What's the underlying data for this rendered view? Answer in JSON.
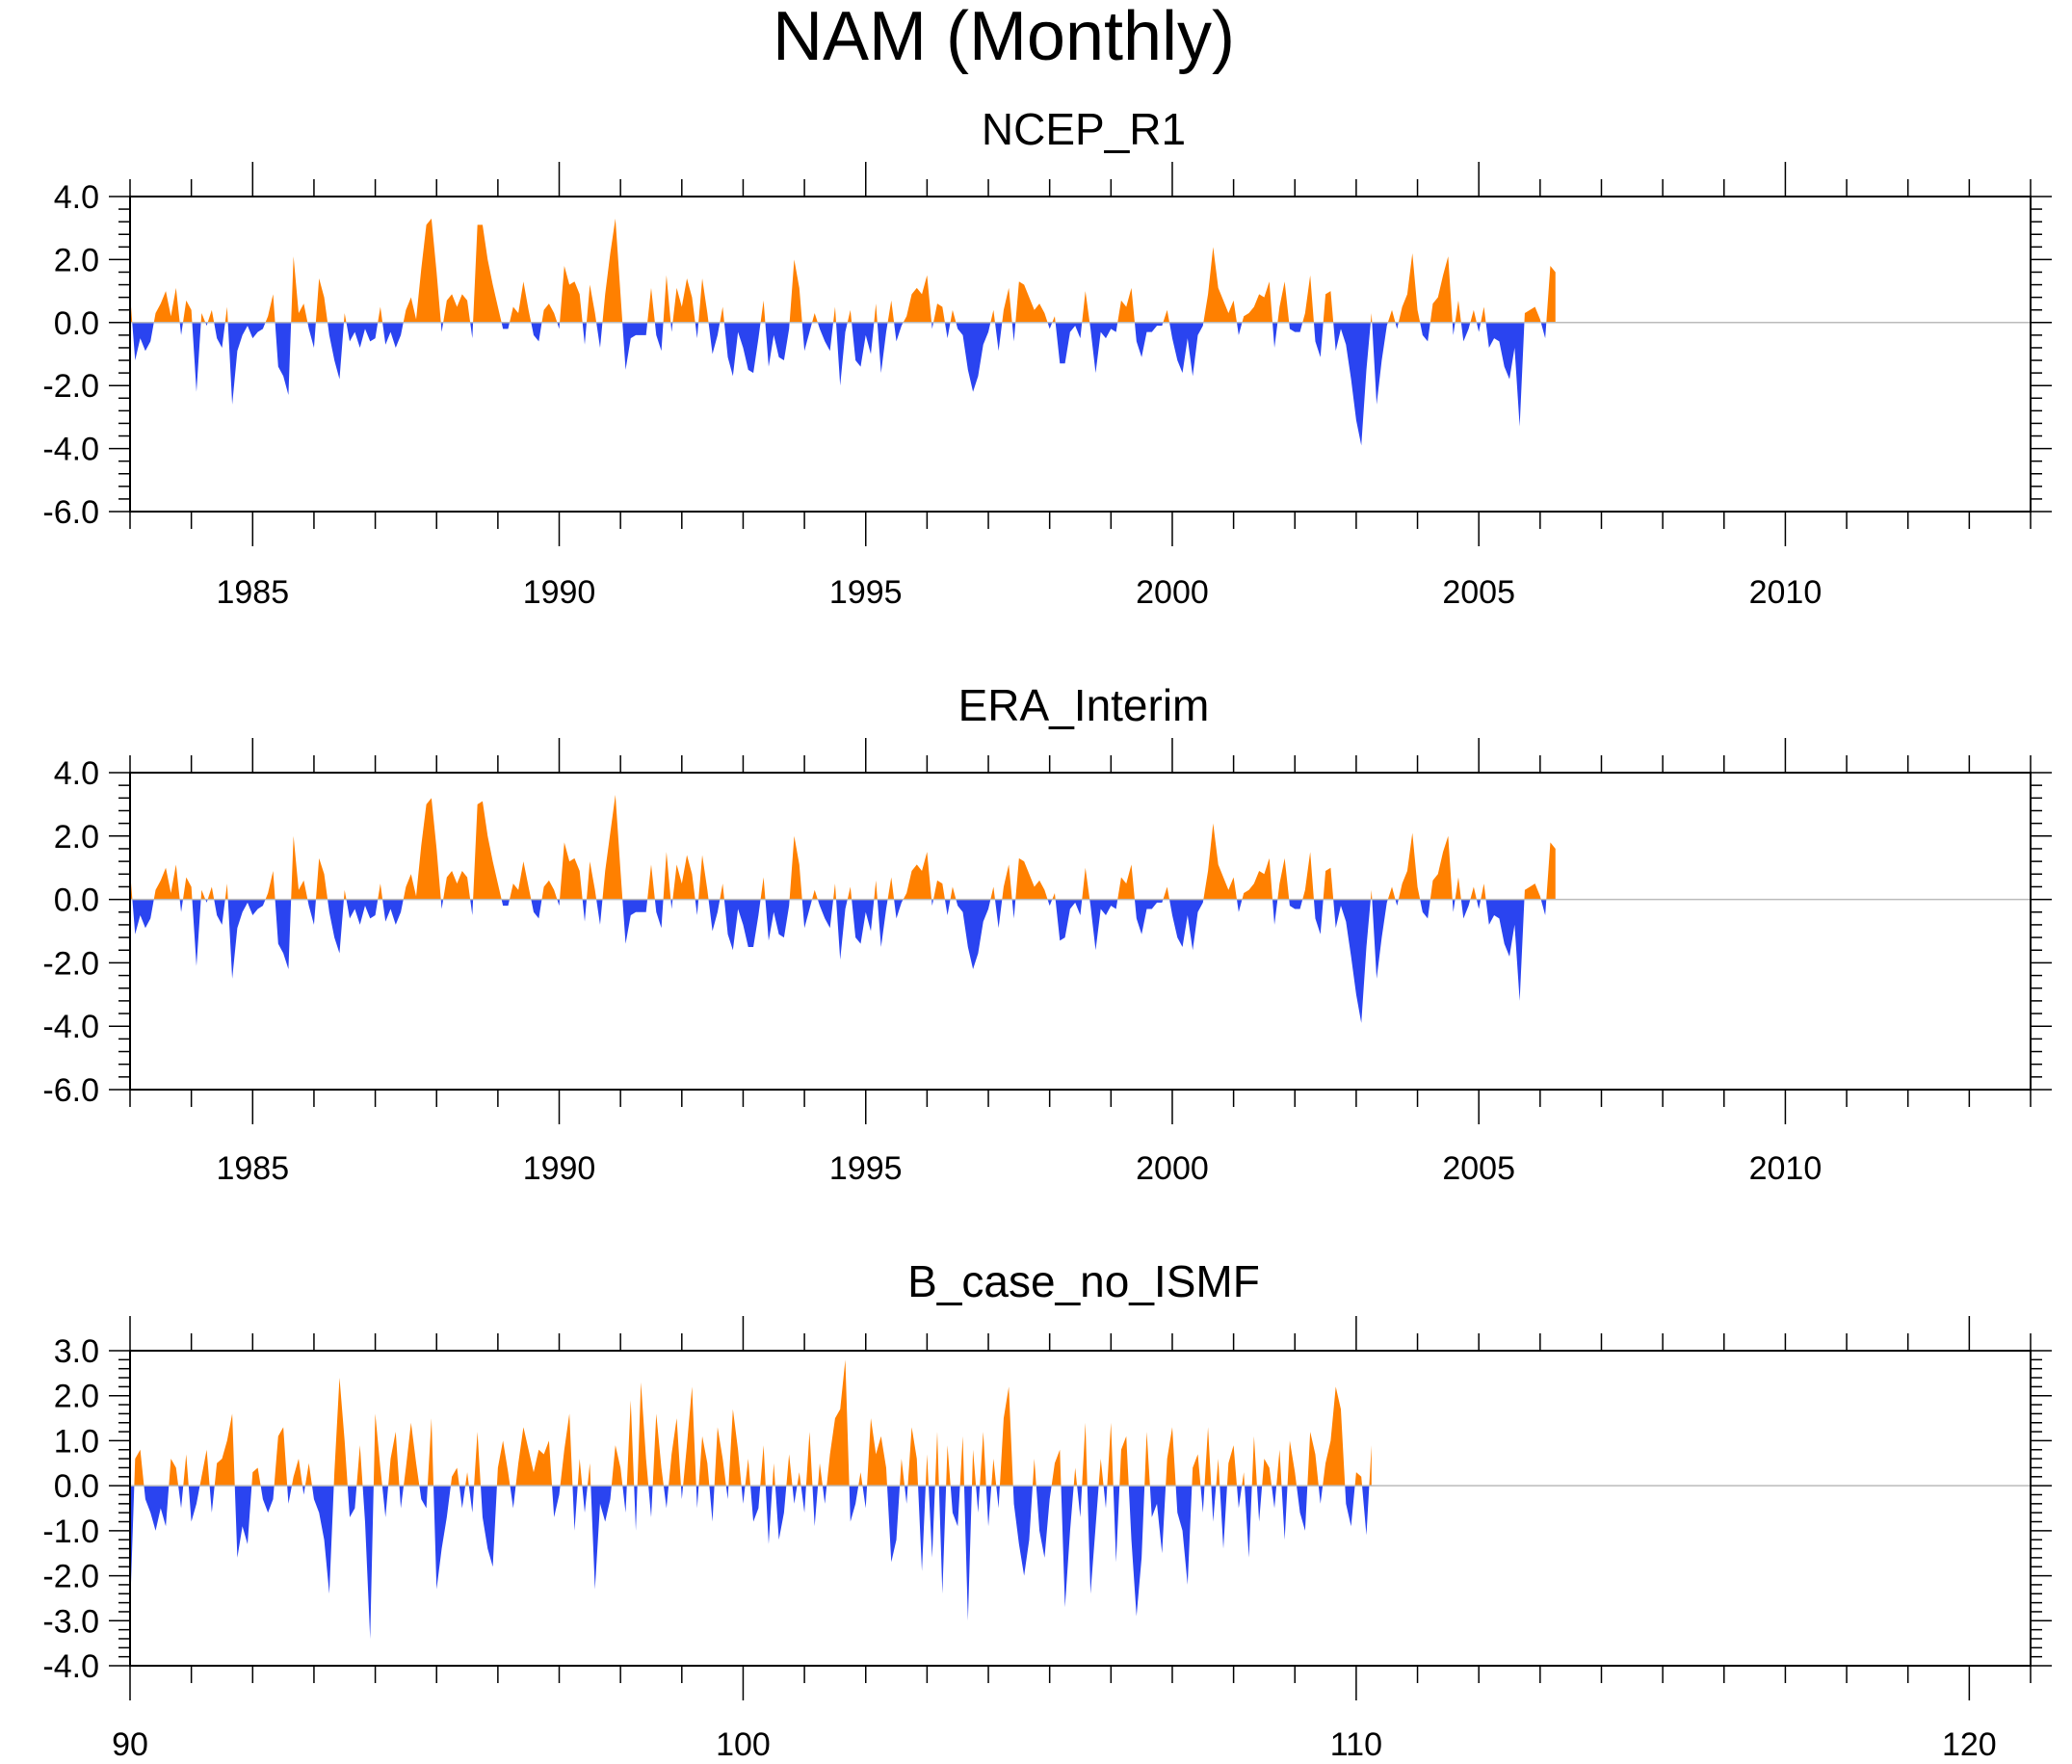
{
  "title": "NAM (Monthly)",
  "colors": {
    "positive": "#ff8000",
    "negative": "#2a44f0",
    "axis": "#000000",
    "zero_line": "#bbbbbb"
  },
  "chart_data": [
    {
      "type": "area",
      "title": "NCEP_R1",
      "xlabel": "",
      "ylabel": "",
      "x_range": [
        1983,
        2014
      ],
      "x_start": 1983.0,
      "x_step": 0.0833333,
      "xticks": [
        1985,
        1990,
        1995,
        2000,
        2005,
        2010
      ],
      "xtick_labels": [
        "1985",
        "1990",
        "1995",
        "2000",
        "2005",
        "2010"
      ],
      "ylim": [
        -6.0,
        4.0
      ],
      "yticks": [
        4.0,
        2.0,
        0.0,
        -2.0,
        -4.0,
        -6.0
      ],
      "ytick_labels": [
        "4.0",
        "2.0",
        "0.0",
        "-2.0",
        "-4.0",
        "-6.0"
      ],
      "values": [
        0.9,
        -1.2,
        -0.5,
        -0.9,
        -0.6,
        0.3,
        0.6,
        1.0,
        0.2,
        1.1,
        -0.4,
        0.7,
        0.4,
        -2.2,
        0.3,
        -0.1,
        0.4,
        -0.5,
        -0.8,
        0.5,
        -2.6,
        -0.9,
        -0.4,
        -0.1,
        -0.5,
        -0.3,
        -0.2,
        0.2,
        0.9,
        -1.4,
        -1.7,
        -2.3,
        2.1,
        0.3,
        0.6,
        -0.2,
        -0.8,
        1.4,
        0.8,
        -0.4,
        -1.2,
        -1.8,
        0.3,
        -0.6,
        -0.3,
        -0.8,
        -0.2,
        -0.6,
        -0.5,
        0.5,
        -0.7,
        -0.3,
        -0.8,
        -0.4,
        0.4,
        0.8,
        0.1,
        1.7,
        3.1,
        3.3,
        1.6,
        -0.3,
        0.7,
        0.9,
        0.5,
        0.9,
        0.7,
        -0.5,
        3.1,
        3.1,
        2.0,
        1.2,
        0.5,
        -0.2,
        -0.2,
        0.5,
        0.3,
        1.3,
        0.4,
        -0.4,
        -0.6,
        0.4,
        0.6,
        0.3,
        -0.2,
        1.8,
        1.2,
        1.3,
        0.9,
        -0.7,
        1.2,
        0.3,
        -0.8,
        0.9,
        2.2,
        3.3,
        0.9,
        -1.5,
        -0.5,
        -0.4,
        -0.4,
        -0.4,
        1.1,
        -0.4,
        -0.9,
        1.5,
        -0.3,
        1.1,
        0.5,
        1.4,
        0.8,
        -0.5,
        1.4,
        0.3,
        -1.0,
        -0.4,
        0.5,
        -1.1,
        -1.7,
        -0.3,
        -0.8,
        -1.5,
        -1.6,
        -0.5,
        0.7,
        -1.4,
        -0.4,
        -1.1,
        -1.2,
        -0.2,
        2.0,
        1.1,
        -0.9,
        -0.3,
        0.3,
        -0.2,
        -0.6,
        -0.9,
        0.5,
        -2.0,
        -0.3,
        0.4,
        -1.2,
        -1.4,
        -0.4,
        -1.0,
        0.6,
        -1.6,
        -0.3,
        0.7,
        -0.6,
        -0.1,
        0.2,
        0.9,
        1.1,
        0.9,
        1.5,
        -0.2,
        0.6,
        0.5,
        -0.5,
        0.4,
        -0.2,
        -0.4,
        -1.5,
        -2.2,
        -1.7,
        -0.7,
        -0.3,
        0.4,
        -0.9,
        0.4,
        1.1,
        -0.6,
        1.3,
        1.2,
        0.8,
        0.4,
        0.6,
        0.3,
        -0.2,
        0.2,
        -1.3,
        -1.3,
        -0.3,
        -0.1,
        -0.5,
        1.0,
        -0.2,
        -1.6,
        -0.3,
        -0.5,
        -0.2,
        -0.3,
        0.7,
        0.5,
        1.1,
        -0.6,
        -1.1,
        -0.3,
        -0.3,
        -0.1,
        -0.1,
        0.4,
        -0.5,
        -1.2,
        -1.6,
        -0.5,
        -1.7,
        -0.4,
        -0.1,
        0.9,
        2.4,
        1.1,
        0.7,
        0.3,
        0.7,
        -0.4,
        0.2,
        0.3,
        0.5,
        0.9,
        0.8,
        1.3,
        -0.8,
        0.5,
        1.3,
        -0.2,
        -0.3,
        -0.3,
        0.3,
        1.5,
        -0.6,
        -1.1,
        0.9,
        1.0,
        -0.9,
        -0.2,
        -0.7,
        -1.8,
        -3.1,
        -3.9,
        -1.5,
        0.3,
        -2.6,
        -1.2,
        -0.1,
        0.4,
        -0.2,
        0.5,
        0.9,
        2.2,
        0.4,
        -0.4,
        -0.6,
        0.6,
        0.8,
        1.5,
        2.1,
        -0.4,
        0.7,
        -0.6,
        -0.2,
        0.4,
        -0.3,
        0.5,
        -0.8,
        -0.5,
        -0.6,
        -1.4,
        -1.8,
        -0.8,
        -3.3,
        0.3,
        0.4,
        0.5,
        0.1,
        -0.5,
        1.8,
        1.6
      ]
    },
    {
      "type": "area",
      "title": "ERA_Interim",
      "xlabel": "",
      "ylabel": "",
      "x_range": [
        1983,
        2014
      ],
      "x_start": 1983.0,
      "x_step": 0.0833333,
      "xticks": [
        1985,
        1990,
        1995,
        2000,
        2005,
        2010
      ],
      "xtick_labels": [
        "1985",
        "1990",
        "1995",
        "2000",
        "2005",
        "2010"
      ],
      "ylim": [
        -6.0,
        4.0
      ],
      "yticks": [
        4.0,
        2.0,
        0.0,
        -2.0,
        -4.0,
        -6.0
      ],
      "ytick_labels": [
        "4.0",
        "2.0",
        "0.0",
        "-2.0",
        "-4.0",
        "-6.0"
      ],
      "values": [
        0.9,
        -1.1,
        -0.5,
        -0.9,
        -0.6,
        0.3,
        0.6,
        1.0,
        0.2,
        1.1,
        -0.4,
        0.7,
        0.4,
        -2.1,
        0.3,
        -0.1,
        0.4,
        -0.5,
        -0.8,
        0.5,
        -2.5,
        -0.9,
        -0.4,
        -0.1,
        -0.5,
        -0.3,
        -0.2,
        0.2,
        0.9,
        -1.4,
        -1.7,
        -2.2,
        2.0,
        0.3,
        0.6,
        -0.2,
        -0.8,
        1.3,
        0.8,
        -0.4,
        -1.2,
        -1.7,
        0.3,
        -0.6,
        -0.3,
        -0.8,
        -0.2,
        -0.6,
        -0.5,
        0.5,
        -0.7,
        -0.3,
        -0.8,
        -0.4,
        0.4,
        0.8,
        0.1,
        1.7,
        3.0,
        3.2,
        1.6,
        -0.3,
        0.7,
        0.9,
        0.5,
        0.9,
        0.7,
        -0.5,
        3.0,
        3.1,
        2.0,
        1.2,
        0.5,
        -0.2,
        -0.2,
        0.5,
        0.3,
        1.2,
        0.4,
        -0.4,
        -0.6,
        0.4,
        0.6,
        0.3,
        -0.2,
        1.8,
        1.2,
        1.3,
        0.9,
        -0.7,
        1.2,
        0.3,
        -0.8,
        0.9,
        2.1,
        3.3,
        0.9,
        -1.4,
        -0.5,
        -0.4,
        -0.4,
        -0.4,
        1.1,
        -0.4,
        -0.9,
        1.5,
        -0.3,
        1.1,
        0.5,
        1.4,
        0.8,
        -0.5,
        1.4,
        0.3,
        -1.0,
        -0.4,
        0.5,
        -1.1,
        -1.6,
        -0.3,
        -0.8,
        -1.5,
        -1.5,
        -0.5,
        0.7,
        -1.3,
        -0.4,
        -1.1,
        -1.2,
        -0.2,
        2.0,
        1.1,
        -0.9,
        -0.3,
        0.3,
        -0.2,
        -0.6,
        -0.9,
        0.5,
        -1.9,
        -0.3,
        0.4,
        -1.2,
        -1.4,
        -0.4,
        -1.0,
        0.6,
        -1.5,
        -0.3,
        0.7,
        -0.6,
        -0.1,
        0.2,
        0.9,
        1.1,
        0.9,
        1.5,
        -0.2,
        0.6,
        0.5,
        -0.5,
        0.4,
        -0.2,
        -0.4,
        -1.5,
        -2.2,
        -1.7,
        -0.7,
        -0.3,
        0.4,
        -0.9,
        0.4,
        1.1,
        -0.6,
        1.3,
        1.2,
        0.8,
        0.4,
        0.6,
        0.3,
        -0.2,
        0.2,
        -1.3,
        -1.2,
        -0.3,
        -0.1,
        -0.5,
        1.0,
        -0.2,
        -1.6,
        -0.3,
        -0.5,
        -0.2,
        -0.3,
        0.7,
        0.5,
        1.1,
        -0.6,
        -1.1,
        -0.3,
        -0.3,
        -0.1,
        -0.1,
        0.4,
        -0.5,
        -1.2,
        -1.5,
        -0.5,
        -1.6,
        -0.4,
        -0.1,
        0.9,
        2.4,
        1.1,
        0.7,
        0.3,
        0.7,
        -0.4,
        0.2,
        0.3,
        0.5,
        0.9,
        0.8,
        1.3,
        -0.8,
        0.5,
        1.3,
        -0.2,
        -0.3,
        -0.3,
        0.3,
        1.5,
        -0.6,
        -1.1,
        0.9,
        1.0,
        -0.9,
        -0.2,
        -0.7,
        -1.8,
        -3.0,
        -3.9,
        -1.5,
        0.3,
        -2.5,
        -1.2,
        -0.1,
        0.4,
        -0.2,
        0.5,
        0.9,
        2.1,
        0.4,
        -0.4,
        -0.6,
        0.6,
        0.8,
        1.5,
        2.0,
        -0.4,
        0.7,
        -0.6,
        -0.2,
        0.4,
        -0.3,
        0.5,
        -0.8,
        -0.5,
        -0.6,
        -1.4,
        -1.8,
        -0.8,
        -3.2,
        0.3,
        0.4,
        0.5,
        0.1,
        -0.5,
        1.8,
        1.6
      ]
    },
    {
      "type": "area",
      "title": "B_case_no_ISMF",
      "xlabel": "",
      "ylabel": "",
      "x_range": [
        90,
        121
      ],
      "x_start": 90.0,
      "x_step": 0.0833333,
      "xticks": [
        90,
        100,
        110,
        120
      ],
      "xtick_labels": [
        "90",
        "100",
        "110",
        "120"
      ],
      "ylim": [
        -4.0,
        3.0
      ],
      "yticks": [
        3.0,
        2.0,
        1.0,
        0.0,
        -1.0,
        -2.0,
        -3.0,
        -4.0
      ],
      "ytick_labels": [
        "3.0",
        "2.0",
        "1.0",
        "0.0",
        "-1.0",
        "-2.0",
        "-3.0",
        "-4.0"
      ],
      "values": [
        -2.8,
        0.6,
        0.8,
        -0.3,
        -0.6,
        -1.0,
        -0.5,
        -0.9,
        0.6,
        0.4,
        -0.5,
        0.7,
        -0.8,
        -0.4,
        0.2,
        0.8,
        -0.6,
        0.5,
        0.6,
        1.0,
        1.6,
        -1.6,
        -0.9,
        -1.3,
        0.3,
        0.4,
        -0.3,
        -0.6,
        -0.3,
        1.1,
        1.3,
        -0.4,
        0.2,
        0.6,
        -0.2,
        0.5,
        -0.3,
        -0.6,
        -1.2,
        -2.4,
        0.3,
        2.4,
        1.0,
        -0.7,
        -0.5,
        0.9,
        -0.8,
        -3.4,
        1.6,
        0.4,
        -0.7,
        0.6,
        1.2,
        -0.5,
        0.4,
        1.4,
        0.5,
        -0.3,
        -0.5,
        1.5,
        -2.3,
        -1.4,
        -0.7,
        0.2,
        0.4,
        -0.5,
        0.3,
        -0.6,
        1.2,
        -0.7,
        -1.4,
        -1.8,
        0.4,
        1.0,
        0.3,
        -0.5,
        0.5,
        1.3,
        0.8,
        0.3,
        0.8,
        0.7,
        1.0,
        -0.7,
        -0.2,
        0.8,
        1.6,
        -1.0,
        0.6,
        -0.6,
        0.5,
        -2.3,
        -0.4,
        -0.8,
        -0.3,
        0.9,
        0.4,
        -0.6,
        1.9,
        -1.0,
        2.3,
        0.6,
        -0.7,
        1.6,
        0.4,
        -0.5,
        0.7,
        1.5,
        -0.3,
        0.9,
        2.2,
        -0.5,
        1.1,
        0.5,
        -0.8,
        1.3,
        0.6,
        -0.3,
        1.7,
        0.8,
        -0.4,
        0.6,
        -0.8,
        -0.5,
        0.9,
        -1.3,
        0.5,
        -1.2,
        -0.6,
        0.7,
        -0.4,
        0.3,
        -0.6,
        1.2,
        -0.9,
        0.5,
        -0.4,
        0.7,
        1.5,
        1.7,
        2.8,
        -0.8,
        -0.4,
        0.3,
        -0.5,
        1.5,
        0.7,
        1.1,
        0.4,
        -1.7,
        -1.2,
        0.6,
        -0.4,
        1.3,
        0.6,
        -1.9,
        0.7,
        -1.6,
        1.2,
        -2.4,
        0.9,
        -0.6,
        -0.9,
        1.1,
        -3.0,
        0.8,
        -0.6,
        1.2,
        -0.9,
        0.6,
        -0.5,
        1.5,
        2.2,
        -0.4,
        -1.3,
        -2.0,
        -1.2,
        0.6,
        -1.0,
        -1.6,
        -0.3,
        0.5,
        0.8,
        -2.7,
        -1.0,
        0.4,
        -0.7,
        1.4,
        -2.4,
        -0.9,
        0.6,
        -0.5,
        1.4,
        -1.7,
        0.8,
        1.1,
        -1.2,
        -2.9,
        -1.6,
        1.2,
        -0.7,
        -0.4,
        -1.5,
        0.6,
        1.3,
        -0.6,
        -1.0,
        -2.2,
        0.4,
        0.7,
        -0.6,
        1.3,
        -0.8,
        0.6,
        -1.4,
        0.5,
        0.9,
        -0.5,
        0.3,
        -1.6,
        1.1,
        -0.8,
        0.6,
        0.4,
        -0.5,
        0.8,
        -1.2,
        1.0,
        0.3,
        -0.6,
        -1.0,
        1.2,
        0.7,
        -0.4,
        0.5,
        1.0,
        2.2,
        1.7,
        -0.4,
        -0.9,
        0.3,
        0.2,
        -1.1,
        0.9
      ]
    }
  ]
}
